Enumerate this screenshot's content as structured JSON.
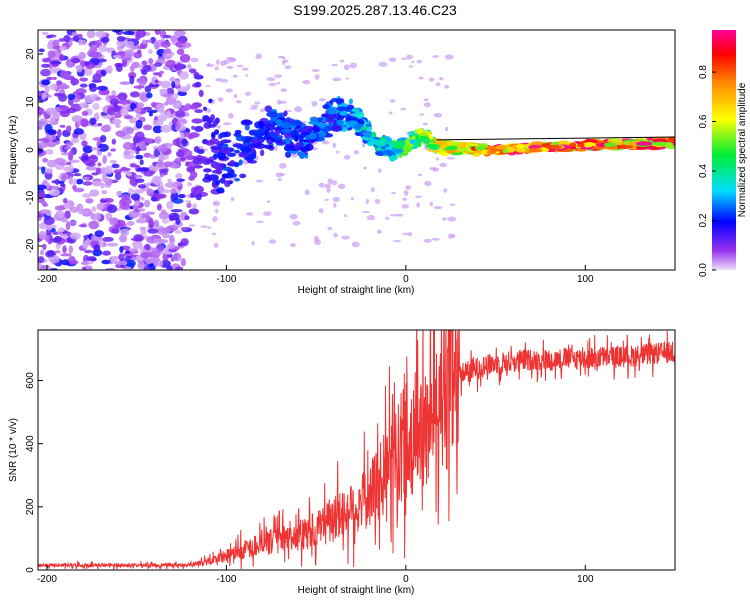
{
  "title": "S199.2025.287.13.46.C23",
  "colors": {
    "snr_line": "#ee3333",
    "axes": "#000000",
    "carrier_line": "#000000"
  },
  "chart_data": [
    {
      "type": "heatmap",
      "name": "spectrogram",
      "xlabel": "Height of straight line (km)",
      "ylabel": "Frequency (Hz)",
      "xlim": [
        -205,
        150
      ],
      "ylim": [
        -25,
        25
      ],
      "xticks": [
        -200,
        -100,
        0,
        100
      ],
      "yticks": [
        -20,
        -10,
        0,
        10,
        20
      ],
      "colorbar": {
        "label": "Normalized spectral amplitude",
        "range": [
          0,
          0.97
        ],
        "ticks": [
          0.0,
          0.2,
          0.4,
          0.6,
          0.8
        ],
        "colormap": "rainbow (light violet → violet → blue → cyan → green → yellow → orange → red → magenta)"
      },
      "carrier_line": {
        "from_height": 17,
        "frequency": 0.5
      },
      "description_points": [
        {
          "height": -200,
          "spread_hz": 25,
          "amplitude": 0.05
        },
        {
          "height": -125,
          "spread_hz": 25,
          "amplitude": 0.08
        },
        {
          "height": -100,
          "center_hz": 0,
          "spread_hz": 6,
          "amplitude": 0.2
        },
        {
          "height": -40,
          "center_hz": 6,
          "spread_hz": 4,
          "amplitude": 0.25
        },
        {
          "height": 0,
          "center_hz": 1,
          "spread_hz": 2,
          "amplitude": 0.45
        },
        {
          "height": 50,
          "center_hz": 0,
          "spread_hz": 1,
          "amplitude": 0.85
        },
        {
          "height": 100,
          "center_hz": 1,
          "spread_hz": 1,
          "amplitude": 0.85
        },
        {
          "height": 150,
          "center_hz": 1.5,
          "spread_hz": 1,
          "amplitude": 0.8
        }
      ]
    },
    {
      "type": "line",
      "name": "snr",
      "xlabel": "Height of straight line (km)",
      "ylabel": "SNR (10 * v/v)",
      "xlim": [
        -205,
        150
      ],
      "ylim": [
        0,
        760
      ],
      "xticks": [
        -200,
        -100,
        0,
        100
      ],
      "yticks": [
        0,
        200,
        400,
        600
      ],
      "series": [
        {
          "name": "SNR",
          "x": [
            -205,
            -180,
            -160,
            -140,
            -125,
            -115,
            -105,
            -95,
            -85,
            -75,
            -65,
            -55,
            -45,
            -35,
            -25,
            -20,
            -15,
            -10,
            -5,
            0,
            5,
            10,
            15,
            20,
            25,
            30,
            40,
            50,
            60,
            70,
            80,
            90,
            100,
            110,
            120,
            130,
            140,
            150
          ],
          "values": [
            15,
            15,
            15,
            15,
            16,
            20,
            35,
            55,
            75,
            90,
            100,
            115,
            140,
            175,
            210,
            240,
            270,
            320,
            370,
            410,
            440,
            470,
            510,
            560,
            590,
            620,
            640,
            655,
            660,
            665,
            665,
            670,
            670,
            675,
            675,
            680,
            685,
            690
          ]
        }
      ]
    }
  ]
}
